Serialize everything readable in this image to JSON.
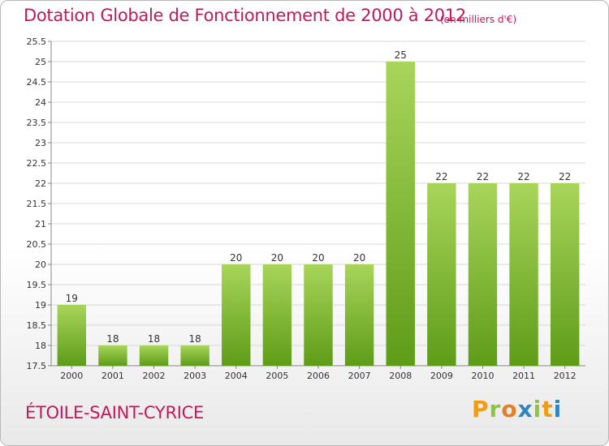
{
  "header": {
    "title": "Dotation Globale de Fonctionnement de 2000 à 2012",
    "unit": "(en milliers d'€)"
  },
  "footer": {
    "place": "ÉTOILE-SAINT-CYRICE",
    "brand": "Proxiti",
    "brand_colors": [
      "#f39c12",
      "#8cc63f",
      "#e67e22",
      "#2e86c1",
      "#8cc63f",
      "#f39c12",
      "#2e86c1"
    ]
  },
  "colors": {
    "title": "#c2185b",
    "bar_top": "#a8d55a",
    "bar_bottom": "#5e9c18",
    "grid": "#d8d8d8",
    "axis_text": "#333333"
  },
  "chart_data": {
    "type": "bar",
    "title": "Dotation Globale de Fonctionnement de 2000 à 2012",
    "subtitle": "(en milliers d'€)",
    "categories": [
      "2000",
      "2001",
      "2002",
      "2003",
      "2004",
      "2005",
      "2006",
      "2007",
      "2008",
      "2009",
      "2010",
      "2011",
      "2012"
    ],
    "values": [
      19,
      18,
      18,
      18,
      20,
      20,
      20,
      20,
      25,
      22,
      22,
      22,
      22
    ],
    "data_labels": [
      "19",
      "18",
      "18",
      "18",
      "20",
      "20",
      "20",
      "20",
      "25",
      "22",
      "22",
      "22",
      "22"
    ],
    "ylim": [
      17.5,
      25.5
    ],
    "yticks": [
      17.5,
      18,
      18.5,
      19,
      19.5,
      20,
      20.5,
      21,
      21.5,
      22,
      22.5,
      23,
      23.5,
      24,
      24.5,
      25,
      25.5
    ],
    "ytick_labels": [
      "17.5",
      "18",
      "18.5",
      "19",
      "19.5",
      "20",
      "20.5",
      "21",
      "21.5",
      "22",
      "22.5",
      "23",
      "23.5",
      "24",
      "24.5",
      "25",
      "25.5"
    ],
    "grid": true,
    "legend": "none"
  }
}
